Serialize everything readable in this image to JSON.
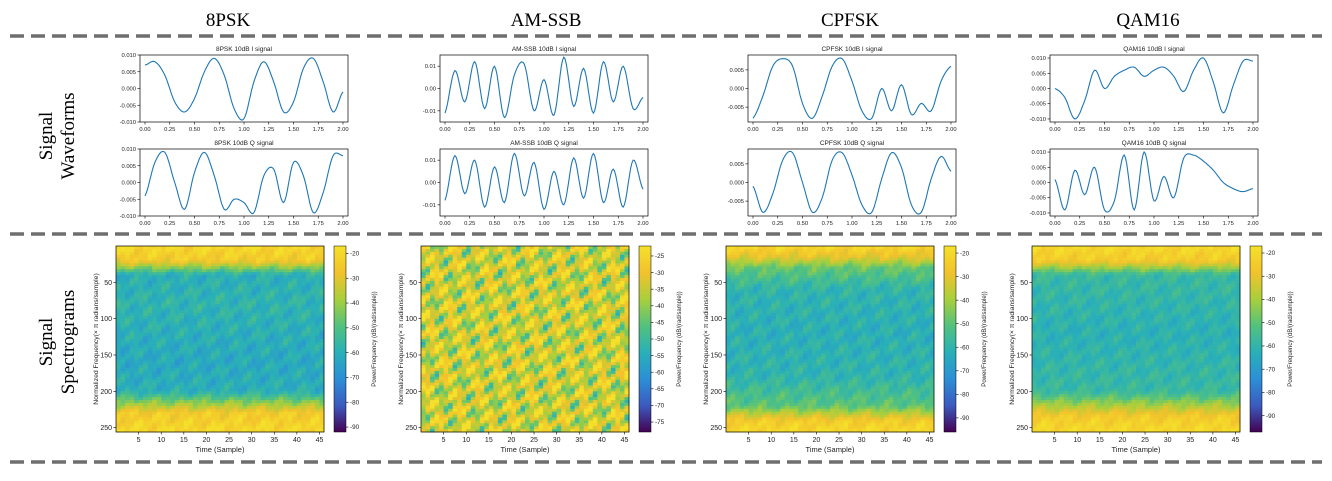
{
  "figure": {
    "columns": [
      "8PSK",
      "AM-SSB",
      "CPFSK",
      "QAM16"
    ],
    "row_labels": {
      "waveforms": [
        "Signal",
        "Waveforms"
      ],
      "spectrograms": [
        "Signal",
        "Spectrograms"
      ]
    }
  },
  "colors": {
    "line": "#1f77b4",
    "divider": "#6e6e6e",
    "cmap": [
      "#440154",
      "#3b5bbf",
      "#2c8fd6",
      "#29b0b8",
      "#53c27e",
      "#a9cf3c",
      "#f2c22c",
      "#f5e12a"
    ]
  },
  "chart_data": [
    {
      "type": "line",
      "title": "8PSK 10dB I signal",
      "x": [
        0,
        0.1,
        0.2,
        0.3,
        0.4,
        0.5,
        0.6,
        0.7,
        0.8,
        0.9,
        1.0,
        1.1,
        1.2,
        1.3,
        1.4,
        1.5,
        1.6,
        1.7,
        1.8,
        1.9,
        2.0
      ],
      "y": [
        0.007,
        0.008,
        0.004,
        -0.004,
        -0.007,
        -0.003,
        0.005,
        0.009,
        0.004,
        -0.006,
        -0.009,
        0.002,
        0.008,
        0.002,
        -0.007,
        -0.004,
        0.006,
        0.009,
        0.002,
        -0.007,
        -0.001
      ],
      "xlim": [
        0,
        2
      ],
      "ylim": [
        -0.01,
        0.01
      ],
      "xticks": [
        "0.00",
        "0.25",
        "0.50",
        "0.75",
        "1.00",
        "1.25",
        "1.50",
        "1.75",
        "2.00"
      ],
      "yticks": [
        "0.010",
        "0.005",
        "0.000",
        "-0.005",
        "-0.010"
      ]
    },
    {
      "type": "line",
      "title": "8PSK 10dB Q signal",
      "x": [
        0,
        0.1,
        0.2,
        0.3,
        0.4,
        0.5,
        0.6,
        0.7,
        0.8,
        0.9,
        1.0,
        1.1,
        1.2,
        1.3,
        1.4,
        1.5,
        1.6,
        1.7,
        1.8,
        1.9,
        2.0
      ],
      "y": [
        -0.004,
        0.006,
        0.009,
        0.0,
        -0.008,
        0.003,
        0.009,
        0.002,
        -0.008,
        -0.005,
        -0.006,
        -0.009,
        0.002,
        0.004,
        -0.006,
        0.006,
        0.002,
        -0.009,
        -0.003,
        0.008,
        0.008
      ],
      "xlim": [
        0,
        2
      ],
      "ylim": [
        -0.01,
        0.01
      ],
      "xticks": [
        "0.00",
        "0.25",
        "0.50",
        "0.75",
        "1.00",
        "1.25",
        "1.50",
        "1.75",
        "2.00"
      ],
      "yticks": [
        "0.010",
        "0.005",
        "0.000",
        "-0.005",
        "-0.010"
      ]
    },
    {
      "type": "line",
      "title": "AM-SSB 10dB I signal",
      "x": [
        0,
        0.1,
        0.2,
        0.3,
        0.4,
        0.5,
        0.6,
        0.7,
        0.8,
        0.9,
        1.0,
        1.1,
        1.2,
        1.3,
        1.4,
        1.5,
        1.6,
        1.7,
        1.8,
        1.9,
        2.0
      ],
      "y": [
        -0.011,
        0.008,
        -0.006,
        0.012,
        -0.009,
        0.01,
        -0.013,
        0.006,
        0.011,
        -0.01,
        0.004,
        -0.012,
        0.014,
        -0.008,
        0.009,
        -0.011,
        0.012,
        -0.006,
        0.01,
        -0.009,
        -0.004
      ],
      "xlim": [
        0,
        2
      ],
      "ylim": [
        -0.015,
        0.015
      ],
      "xticks": [
        "0.00",
        "0.25",
        "0.50",
        "0.75",
        "1.00",
        "1.25",
        "1.50",
        "1.75",
        "2.00"
      ],
      "yticks": [
        "0.01",
        "0.00",
        "-0.01"
      ]
    },
    {
      "type": "line",
      "title": "AM-SSB 10dB Q signal",
      "x": [
        0,
        0.1,
        0.2,
        0.3,
        0.4,
        0.5,
        0.6,
        0.7,
        0.8,
        0.9,
        1.0,
        1.1,
        1.2,
        1.3,
        1.4,
        1.5,
        1.6,
        1.7,
        1.8,
        1.9,
        2.0
      ],
      "y": [
        -0.008,
        0.012,
        -0.005,
        0.01,
        -0.011,
        0.007,
        -0.009,
        0.013,
        -0.006,
        0.009,
        -0.012,
        0.005,
        -0.01,
        0.011,
        -0.007,
        0.013,
        -0.009,
        0.006,
        -0.011,
        0.01,
        -0.003
      ],
      "xlim": [
        0,
        2
      ],
      "ylim": [
        -0.015,
        0.015
      ],
      "xticks": [
        "0.00",
        "0.25",
        "0.50",
        "0.75",
        "1.00",
        "1.25",
        "1.50",
        "1.75",
        "2.00"
      ],
      "yticks": [
        "0.01",
        "0.00",
        "-0.01"
      ]
    },
    {
      "type": "line",
      "title": "CPFSK 10dB I signal",
      "x": [
        0,
        0.1,
        0.2,
        0.3,
        0.4,
        0.5,
        0.6,
        0.7,
        0.8,
        0.9,
        1.0,
        1.1,
        1.2,
        1.3,
        1.4,
        1.5,
        1.6,
        1.7,
        1.8,
        1.9,
        2.0
      ],
      "y": [
        -0.008,
        -0.002,
        0.006,
        0.008,
        0.006,
        -0.004,
        -0.008,
        -0.002,
        0.006,
        0.008,
        0.002,
        -0.006,
        -0.008,
        0.0,
        -0.006,
        0.001,
        -0.007,
        -0.004,
        -0.006,
        0.002,
        0.006
      ],
      "xlim": [
        0,
        2
      ],
      "ylim": [
        -0.009,
        0.009
      ],
      "xticks": [
        "0.00",
        "0.25",
        "0.50",
        "0.75",
        "1.00",
        "1.25",
        "1.50",
        "1.75",
        "2.00"
      ],
      "yticks": [
        "0.005",
        "0.000",
        "-0.005"
      ]
    },
    {
      "type": "line",
      "title": "CPFSK 10dB Q signal",
      "x": [
        0,
        0.1,
        0.2,
        0.3,
        0.4,
        0.5,
        0.6,
        0.7,
        0.8,
        0.9,
        1.0,
        1.1,
        1.2,
        1.3,
        1.4,
        1.5,
        1.6,
        1.7,
        1.8,
        1.9,
        2.0
      ],
      "y": [
        -0.001,
        -0.008,
        -0.003,
        0.006,
        0.008,
        0.0,
        -0.008,
        -0.004,
        0.006,
        0.008,
        0.002,
        -0.006,
        -0.008,
        0.001,
        0.008,
        0.004,
        -0.006,
        -0.008,
        0.001,
        0.007,
        0.003
      ],
      "xlim": [
        0,
        2
      ],
      "ylim": [
        -0.009,
        0.009
      ],
      "xticks": [
        "0.00",
        "0.25",
        "0.50",
        "0.75",
        "1.00",
        "1.25",
        "1.50",
        "1.75",
        "2.00"
      ],
      "yticks": [
        "0.005",
        "0.000",
        "-0.005"
      ]
    },
    {
      "type": "line",
      "title": "QAM16 10dB I signal",
      "x": [
        0,
        0.1,
        0.2,
        0.3,
        0.4,
        0.5,
        0.6,
        0.7,
        0.8,
        0.9,
        1.0,
        1.1,
        1.2,
        1.3,
        1.4,
        1.5,
        1.6,
        1.7,
        1.8,
        1.9,
        2.0
      ],
      "y": [
        0.0,
        -0.003,
        -0.01,
        -0.004,
        0.006,
        0.0,
        0.004,
        0.006,
        0.007,
        0.004,
        0.006,
        0.007,
        0.004,
        -0.001,
        0.006,
        0.01,
        0.002,
        -0.008,
        0.001,
        0.009,
        0.009
      ],
      "xlim": [
        0,
        2
      ],
      "ylim": [
        -0.011,
        0.011
      ],
      "xticks": [
        "0.00",
        "0.25",
        "0.50",
        "0.75",
        "1.00",
        "1.25",
        "1.50",
        "1.75",
        "2.00"
      ],
      "yticks": [
        "0.010",
        "0.005",
        "0.000",
        "-0.005",
        "-0.010"
      ]
    },
    {
      "type": "line",
      "title": "QAM16 10dB Q signal",
      "x": [
        0,
        0.1,
        0.2,
        0.3,
        0.4,
        0.5,
        0.6,
        0.7,
        0.8,
        0.9,
        1.0,
        1.1,
        1.2,
        1.3,
        1.4,
        1.5,
        1.6,
        1.7,
        1.8,
        1.9,
        2.0
      ],
      "y": [
        0.001,
        -0.009,
        0.004,
        -0.004,
        0.005,
        -0.009,
        -0.006,
        0.009,
        -0.009,
        0.01,
        -0.006,
        0.002,
        -0.005,
        0.008,
        0.009,
        0.007,
        0.004,
        0.0,
        -0.002,
        -0.003,
        -0.002
      ],
      "xlim": [
        0,
        2
      ],
      "ylim": [
        -0.011,
        0.011
      ],
      "xticks": [
        "0.00",
        "0.25",
        "0.50",
        "0.75",
        "1.00",
        "1.25",
        "1.50",
        "1.75",
        "2.00"
      ],
      "yticks": [
        "0.010",
        "0.005",
        "0.000",
        "-0.005",
        "-0.010"
      ]
    },
    {
      "type": "heatmap",
      "xlabel": "Time (Sample)",
      "ylabel": "Normalized Frequency(× π radians/sample)",
      "colorbar_label": "Power/Frequency (dB/(rad/sample))",
      "xlim": [
        0,
        46
      ],
      "ylim": [
        256,
        0
      ],
      "xticks": [
        "5",
        "10",
        "15",
        "20",
        "25",
        "30",
        "35",
        "40",
        "45"
      ],
      "yticks": [
        "50",
        "100",
        "150",
        "200",
        "250"
      ],
      "colorbar_ticks": [
        "-20",
        "-30",
        "-40",
        "-50",
        "-60",
        "-70",
        "-80",
        "-90"
      ],
      "vmin": -92,
      "vmax": -17,
      "freq_rows": [
        0,
        20,
        40,
        80,
        120,
        160,
        200,
        230,
        256
      ],
      "row_levels": [
        -20,
        -25,
        -60,
        -58,
        -60,
        -62,
        -60,
        -25,
        -20
      ],
      "texture": 0.35
    },
    {
      "type": "heatmap",
      "xlabel": "Time (Sample)",
      "ylabel": "Normalized Frequency(× π radians/sample)",
      "colorbar_label": "Power/Frequency (dB/(rad/sample))",
      "xlim": [
        0,
        46
      ],
      "ylim": [
        256,
        0
      ],
      "xticks": [
        "5",
        "10",
        "15",
        "20",
        "25",
        "30",
        "35",
        "40",
        "45"
      ],
      "yticks": [
        "50",
        "100",
        "150",
        "200",
        "250"
      ],
      "colorbar_ticks": [
        "-25",
        "-30",
        "-35",
        "-40",
        "-45",
        "-50",
        "-55",
        "-60",
        "-65",
        "-70",
        "-75"
      ],
      "vmin": -78,
      "vmax": -22,
      "freq_rows": [
        0,
        40,
        80,
        120,
        160,
        200,
        256
      ],
      "row_levels": [
        -33,
        -34,
        -33,
        -34,
        -33,
        -34,
        -33
      ],
      "texture": 1.0
    },
    {
      "type": "heatmap",
      "xlabel": "Time (Sample)",
      "ylabel": "Normalized Frequency(× π radians/sample)",
      "colorbar_label": "Power/Frequency (dB/(rad/sample))",
      "xlim": [
        0,
        46
      ],
      "ylim": [
        256,
        0
      ],
      "xticks": [
        "5",
        "10",
        "15",
        "20",
        "25",
        "30",
        "35",
        "40",
        "45"
      ],
      "yticks": [
        "50",
        "100",
        "150",
        "200",
        "250"
      ],
      "colorbar_ticks": [
        "-20",
        "-30",
        "-40",
        "-50",
        "-60",
        "-70",
        "-80",
        "-90"
      ],
      "vmin": -96,
      "vmax": -17,
      "freq_rows": [
        0,
        15,
        30,
        60,
        120,
        180,
        220,
        240,
        256
      ],
      "row_levels": [
        -20,
        -30,
        -48,
        -60,
        -62,
        -60,
        -50,
        -25,
        -20
      ],
      "texture": 0.35
    },
    {
      "type": "heatmap",
      "xlabel": "Time (Sample)",
      "ylabel": "Normalized Frequency(× π radians/sample)",
      "colorbar_label": "Power/Frequency (dB/(rad/sample))",
      "xlim": [
        0,
        46
      ],
      "ylim": [
        256,
        0
      ],
      "xticks": [
        "5",
        "10",
        "15",
        "20",
        "25",
        "30",
        "35",
        "40",
        "45"
      ],
      "yticks": [
        "50",
        "100",
        "150",
        "200",
        "250"
      ],
      "colorbar_ticks": [
        "-20",
        "-30",
        "-40",
        "-50",
        "-60",
        "-70",
        "-80",
        "-90"
      ],
      "vmin": -97,
      "vmax": -17,
      "freq_rows": [
        0,
        20,
        40,
        80,
        120,
        160,
        200,
        235,
        256
      ],
      "row_levels": [
        -20,
        -25,
        -58,
        -60,
        -62,
        -60,
        -58,
        -25,
        -20
      ],
      "texture": 0.3
    }
  ]
}
